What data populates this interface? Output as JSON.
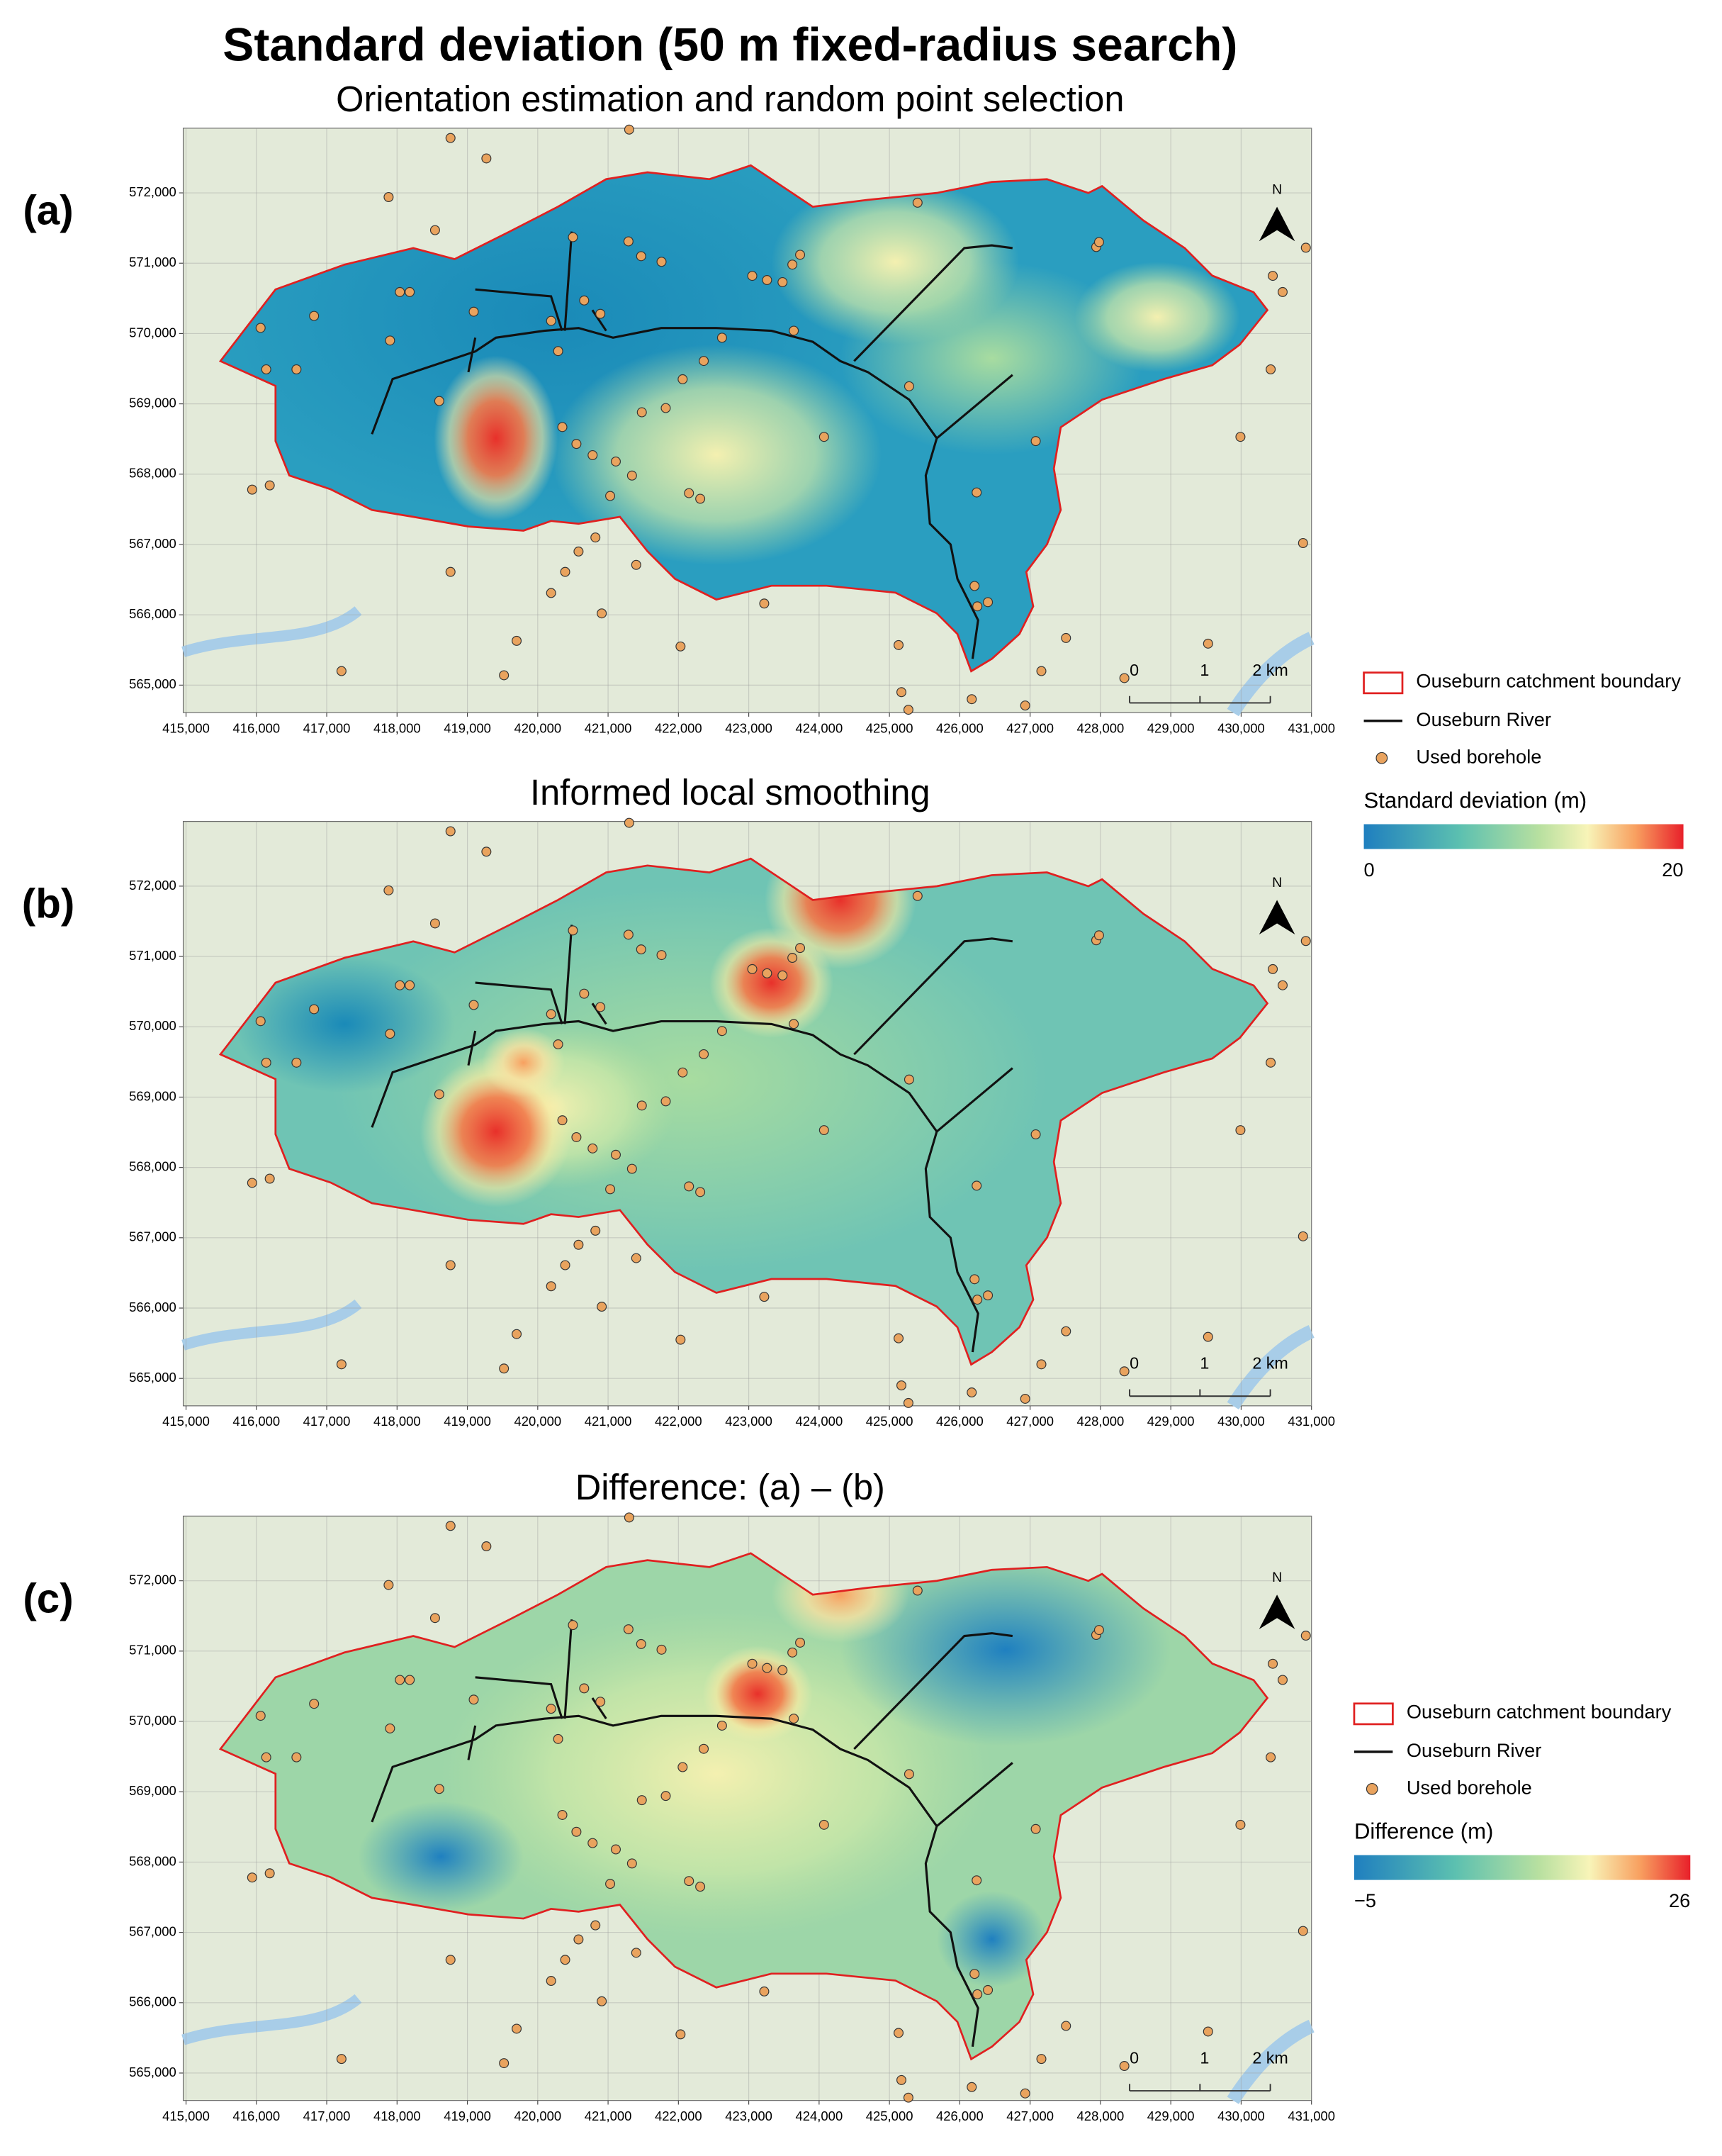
{
  "title": "Standard deviation (50 m fixed-radius search)",
  "panels": [
    {
      "label": "(a)",
      "title": "Orientation estimation and random point selection"
    },
    {
      "label": "(b)",
      "title": "Informed local smoothing"
    },
    {
      "label": "(c)",
      "title": "Difference: (a) – (b)"
    }
  ],
  "map": {
    "xlim": [
      414960,
      431000
    ],
    "ylim": [
      564610,
      572920
    ],
    "xticks": [
      {
        "value": 415000,
        "label": "415,000"
      },
      {
        "value": 416000,
        "label": "416,000"
      },
      {
        "value": 417000,
        "label": "417,000"
      },
      {
        "value": 418000,
        "label": "418,000"
      },
      {
        "value": 419000,
        "label": "419,000"
      },
      {
        "value": 420000,
        "label": "420,000"
      },
      {
        "value": 421000,
        "label": "421,000"
      },
      {
        "value": 422000,
        "label": "422,000"
      },
      {
        "value": 423000,
        "label": "423,000"
      },
      {
        "value": 424000,
        "label": "424,000"
      },
      {
        "value": 425000,
        "label": "425,000"
      },
      {
        "value": 426000,
        "label": "426,000"
      },
      {
        "value": 427000,
        "label": "427,000"
      },
      {
        "value": 428000,
        "label": "428,000"
      },
      {
        "value": 429000,
        "label": "429,000"
      },
      {
        "value": 430000,
        "label": "430,000"
      },
      {
        "value": 431000,
        "label": "431,000"
      }
    ],
    "yticks": [
      {
        "value": 565000,
        "label": "565,000"
      },
      {
        "value": 566000,
        "label": "566,000"
      },
      {
        "value": 567000,
        "label": "567,000"
      },
      {
        "value": 568000,
        "label": "568,000"
      },
      {
        "value": 569000,
        "label": "569,000"
      },
      {
        "value": 570000,
        "label": "570,000"
      },
      {
        "value": 571000,
        "label": "571,000"
      },
      {
        "value": 572000,
        "label": "572,000"
      }
    ],
    "north": "N",
    "scale_bar": [
      0,
      1,
      {
        "value": 2,
        "label": "2 km"
      }
    ],
    "boreholes": {
      "x": [
        418760,
        419270,
        421300,
        417880,
        418540,
        420500,
        421290,
        421470,
        421760,
        418040,
        418180,
        416820,
        416060,
        417900,
        419090,
        420190,
        420290,
        420890,
        420660,
        423050,
        423260,
        423730,
        423620,
        423480,
        423640,
        422620,
        422360,
        422060,
        421820,
        421480,
        416570,
        416140,
        418600,
        420350,
        420550,
        420780,
        421110,
        421340,
        421030,
        422150,
        422310,
        424070,
        425280,
        426240,
        427080,
        420820,
        420580,
        420390,
        420190,
        418760,
        421400,
        420910,
        423220,
        422030,
        419700,
        419520,
        417210,
        425130,
        425170,
        425270,
        426170,
        426930,
        427510,
        427160,
        429530,
        428340,
        426210,
        426250,
        426400,
        427940,
        427980,
        429990,
        430420,
        430880,
        430920,
        430590,
        430450,
        415940,
        416190,
        425400
      ],
      "y": [
        572780,
        572490,
        572900,
        571940,
        571470,
        571370,
        571310,
        571100,
        571020,
        570590,
        570590,
        570250,
        570080,
        569900,
        570310,
        570180,
        569750,
        570280,
        570470,
        570820,
        570760,
        571120,
        570980,
        570730,
        570040,
        569940,
        569610,
        569350,
        568940,
        568880,
        569490,
        569490,
        569040,
        568670,
        568430,
        568270,
        568180,
        567980,
        567690,
        567730,
        567650,
        568530,
        569250,
        567740,
        568470,
        567100,
        566900,
        566610,
        566310,
        566610,
        566710,
        566020,
        566160,
        565550,
        565630,
        565140,
        565200,
        565570,
        564900,
        564650,
        564800,
        564710,
        565670,
        565200,
        565590,
        565100,
        566410,
        566120,
        566180,
        571230,
        571300,
        568530,
        569490,
        567020,
        571220,
        570590,
        570820,
        567780,
        567840,
        571860
      ]
    }
  },
  "legends": [
    {
      "items": [
        "Ouseburn catchment boundary",
        "Ouseburn River",
        "Used borehole"
      ],
      "colorbar": {
        "title": "Standard deviation (m)",
        "ticks": [
          0,
          20
        ]
      }
    },
    {
      "items": [
        "Ouseburn catchment boundary",
        "Ouseburn River",
        "Used borehole"
      ],
      "colorbar": {
        "title": "Difference (m)",
        "ticks": [
          {
            "value": -5,
            "label": "−5"
          },
          26
        ]
      }
    }
  ]
}
